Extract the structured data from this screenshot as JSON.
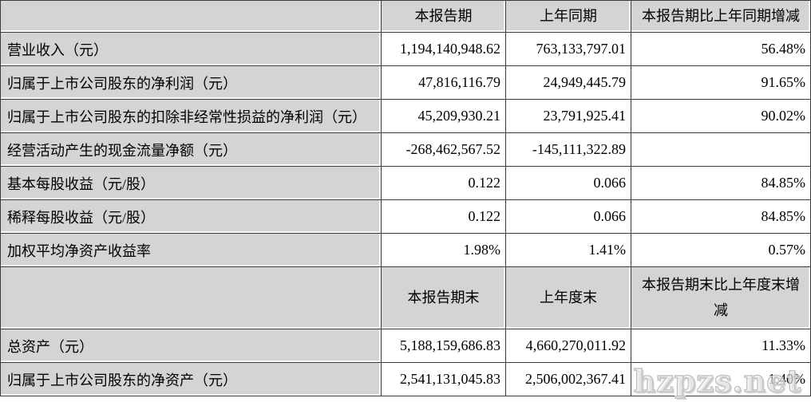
{
  "colors": {
    "cell_shading": "#d4d4d4",
    "border": "#3a3a3a",
    "page_background": "#ffffff"
  },
  "table": {
    "period_header": {
      "label": "",
      "current": "本报告期",
      "prior": "上年同期",
      "change": "本报告期比上年同期增减"
    },
    "section1": {
      "rows": [
        {
          "label": "营业收入（元）",
          "current": "1,194,140,948.62",
          "prior": "763,133,797.01",
          "change": "56.48%"
        },
        {
          "label": "归属于上市公司股东的净利润（元）",
          "current": "47,816,116.79",
          "prior": "24,949,445.79",
          "change": "91.65%"
        },
        {
          "label": "归属于上市公司股东的扣除非经常性损益的净利润（元）",
          "current": "45,209,930.21",
          "prior": "23,791,925.41",
          "change": "90.02%"
        },
        {
          "label": "经营活动产生的现金流量净额（元）",
          "current": "-268,462,567.52",
          "prior": "-145,111,322.89",
          "change": ""
        },
        {
          "label": "基本每股收益（元/股）",
          "current": "0.122",
          "prior": "0.066",
          "change": "84.85%"
        },
        {
          "label": "稀释每股收益（元/股）",
          "current": "0.122",
          "prior": "0.066",
          "change": "84.85%"
        },
        {
          "label": "加权平均净资产收益率",
          "current": "1.98%",
          "prior": "1.41%",
          "change": "0.57%"
        }
      ]
    },
    "endpoint_header": {
      "label": "",
      "current": "本报告期末",
      "prior": "上年度末",
      "change": "本报告期末比上年度末增减"
    },
    "section2": {
      "rows": [
        {
          "label": "总资产（元）",
          "current": "5,188,159,686.83",
          "prior": "4,660,270,011.92",
          "change": "11.33%"
        },
        {
          "label": "归属于上市公司股东的净资产（元）",
          "current": "2,541,131,045.83",
          "prior": "2,506,002,367.41",
          "change": "1.40%"
        }
      ]
    }
  },
  "watermark": {
    "text": "hzpzs.net"
  }
}
